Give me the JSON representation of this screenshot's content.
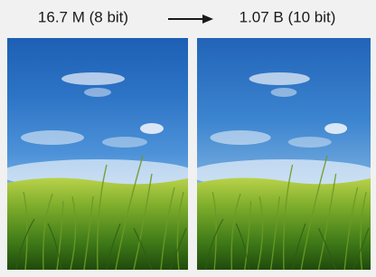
{
  "labels": {
    "left": "16.7 M (8 bit)",
    "right": "1.07 B (10 bit)"
  }
}
